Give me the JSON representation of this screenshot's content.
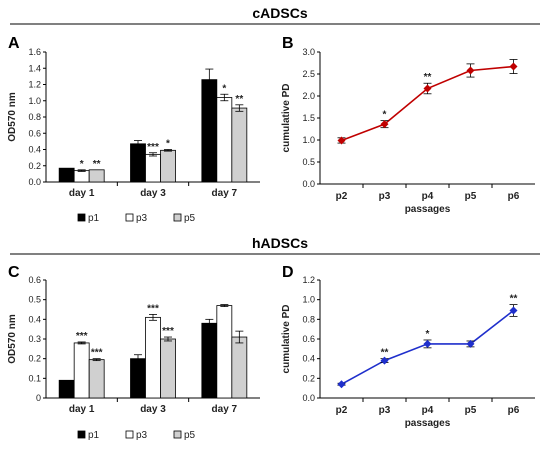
{
  "sections": [
    {
      "title": "cADSCs"
    },
    {
      "title": "hADSCs"
    }
  ],
  "colors": {
    "p1": "#000000",
    "p3": "#ffffff",
    "p5": "#d0d0d0",
    "line_top": "#c00000",
    "line_bottom": "#1f2fcc"
  },
  "chart_data": [
    {
      "panel": "A",
      "type": "bar",
      "categories": [
        "day 1",
        "day 3",
        "day 7"
      ],
      "series": [
        {
          "name": "p1",
          "values": [
            0.17,
            0.47,
            1.26
          ],
          "errors": [
            0.0,
            0.04,
            0.13
          ],
          "sig": [
            "",
            "",
            ""
          ]
        },
        {
          "name": "p3",
          "values": [
            0.14,
            0.34,
            1.04
          ],
          "errors": [
            0.01,
            0.02,
            0.04
          ],
          "sig": [
            "*",
            "***",
            "*"
          ]
        },
        {
          "name": "p5",
          "values": [
            0.15,
            0.39,
            0.91
          ],
          "errors": [
            0.0,
            0.01,
            0.04
          ],
          "sig": [
            "**",
            "*",
            "**"
          ]
        }
      ],
      "ylabel": "OD570 nm",
      "ylim": [
        0,
        1.6
      ],
      "yticks": [
        "0.0",
        "0.2",
        "0.4",
        "0.6",
        "0.8",
        "1.0",
        "1.2",
        "1.4",
        "1.6"
      ],
      "legend_position": "bottom"
    },
    {
      "panel": "B",
      "type": "line",
      "x": [
        "p2",
        "p3",
        "p4",
        "p5",
        "p6"
      ],
      "values": [
        0.99,
        1.36,
        2.17,
        2.58,
        2.67
      ],
      "errors": [
        0.06,
        0.08,
        0.12,
        0.15,
        0.16
      ],
      "sig": [
        "",
        "*",
        "**",
        "",
        ""
      ],
      "xlabel": "passages",
      "ylabel": "cumulative PD",
      "ylim": [
        0,
        3.0
      ],
      "yticks": [
        "0.0",
        "0.5",
        "1.0",
        "1.5",
        "2.0",
        "2.5",
        "3.0"
      ]
    },
    {
      "panel": "C",
      "type": "bar",
      "categories": [
        "day 1",
        "day 3",
        "day 7"
      ],
      "series": [
        {
          "name": "p1",
          "values": [
            0.09,
            0.2,
            0.38
          ],
          "errors": [
            0.0,
            0.02,
            0.02
          ],
          "sig": [
            "",
            "",
            ""
          ]
        },
        {
          "name": "p3",
          "values": [
            0.28,
            0.41,
            0.47
          ],
          "errors": [
            0.005,
            0.015,
            0.005
          ],
          "sig": [
            "***",
            "***",
            ""
          ]
        },
        {
          "name": "p5",
          "values": [
            0.195,
            0.3,
            0.31
          ],
          "errors": [
            0.005,
            0.01,
            0.03
          ],
          "sig": [
            "***",
            "***",
            ""
          ]
        }
      ],
      "ylabel": "OD570 nm",
      "ylim": [
        0,
        0.6
      ],
      "yticks": [
        "0",
        "0.1",
        "0.2",
        "0.3",
        "0.4",
        "0.5",
        "0.6"
      ],
      "legend_position": "bottom"
    },
    {
      "panel": "D",
      "type": "line",
      "x": [
        "p2",
        "p3",
        "p4",
        "p5",
        "p6"
      ],
      "values": [
        0.14,
        0.38,
        0.55,
        0.55,
        0.89
      ],
      "errors": [
        0.01,
        0.02,
        0.04,
        0.03,
        0.06
      ],
      "sig": [
        "",
        "**",
        "*",
        "",
        "**"
      ],
      "xlabel": "passages",
      "ylabel": "cumulative PD",
      "ylim": [
        0,
        1.2
      ],
      "yticks": [
        "0.0",
        "0.2",
        "0.4",
        "0.6",
        "0.8",
        "1.0",
        "1.2"
      ]
    }
  ]
}
